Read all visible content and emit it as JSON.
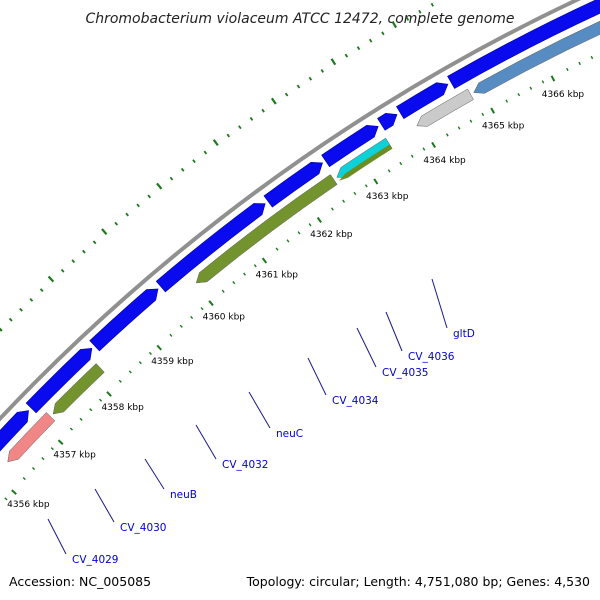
{
  "title": "Chromobacterium violaceum ATCC 12472, complete genome",
  "footer": {
    "accession": "Accession: NC_005085",
    "summary": "Topology: circular; Length: 4,751,080 bp; Genes: 4,530"
  },
  "colors": {
    "backbone": "#909090",
    "forward_cds": "#0a0aee",
    "reverse_cds": "#6b8e23",
    "reverse_cds_pink": "#f08080",
    "reverse_cds_cyan": "#00cfd6",
    "reverse_cds_gray": "#c8c8c8",
    "reverse_cds_steel": "#4f86c0",
    "ticks": "#1a7a1a",
    "gene_label": "#0000cc",
    "leader_line": "#1a1a8a"
  },
  "tick_labels": [
    "4356 kbp",
    "4357 kbp",
    "4358 kbp",
    "4359 kbp",
    "4360 kbp",
    "4361 kbp",
    "4362 kbp",
    "4363 kbp",
    "4364 kbp",
    "4365 kbp",
    "4366 kbp"
  ],
  "genes": [
    {
      "name": "CV_4029"
    },
    {
      "name": "CV_4030"
    },
    {
      "name": "neuB"
    },
    {
      "name": "CV_4032"
    },
    {
      "name": "neuC"
    },
    {
      "name": "CV_4034"
    },
    {
      "name": "CV_4035"
    },
    {
      "name": "CV_4036"
    },
    {
      "name": "gltD"
    }
  ]
}
